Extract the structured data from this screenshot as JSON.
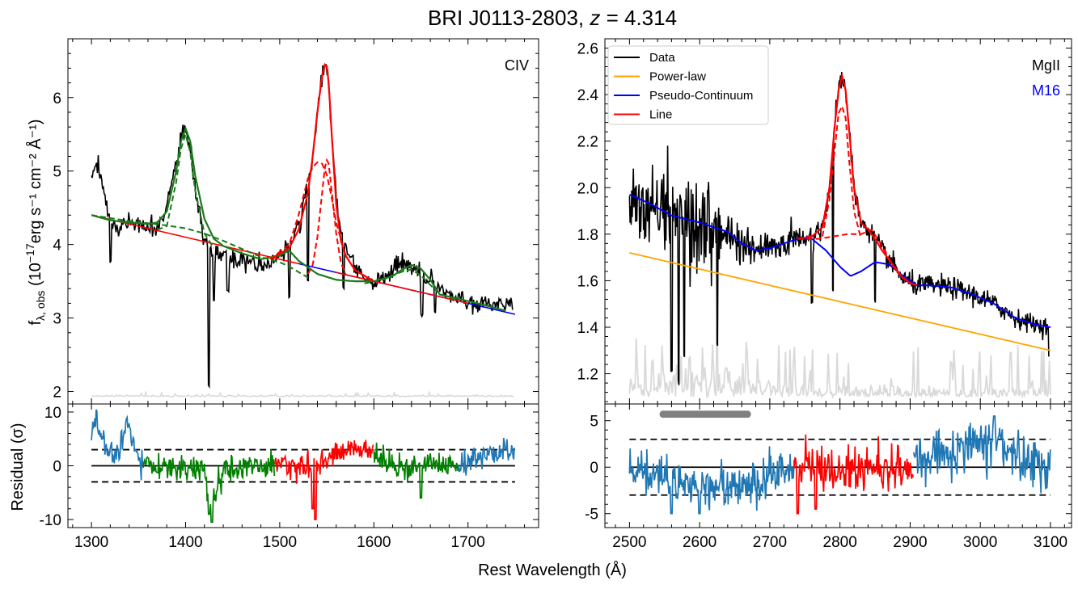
{
  "figure": {
    "title": "BRI J0113-2803, z = 4.314",
    "title_name": "BRI J0113-2803, ",
    "title_z": "z",
    "title_eq": " = 4.314",
    "shared_xlabel": "Rest Wavelength (Å)",
    "ylabel_top": "f",
    "ylabel_sub": "λ, obs",
    "ylabel_rest": " (10",
    "ylabel_sup": "−17",
    "ylabel_tail": "erg s⁻¹ cm⁻² Å⁻¹)",
    "residual_ylabel": "Residual (σ)"
  },
  "colors": {
    "data": "#000000",
    "power_law": "#ffa500",
    "pseudo_continuum": "#0000ff",
    "line": "#ff0000",
    "error": "#d9d9d9",
    "civ_component": "#ff0000",
    "other_component": "#1a7a1a",
    "residual_default": "#1f77b4",
    "residual_line": "#ff0000",
    "residual_other": "#008000",
    "masked": "#808080",
    "m16": "#0000ff"
  },
  "chart_data": [
    {
      "panel": "civ-spectrum",
      "type": "line",
      "annotation": "CIV",
      "xlim": [
        1275,
        1775
      ],
      "ylim": [
        1.83,
        6.8
      ],
      "xticks": [
        1300,
        1400,
        1500,
        1600,
        1700
      ],
      "yticks": [
        2,
        3,
        4,
        5,
        6
      ],
      "continuum": {
        "x": [
          1300,
          1750
        ],
        "y": [
          4.4,
          3.05
        ]
      },
      "data_anchors": {
        "x": [
          1300,
          1305,
          1310,
          1315,
          1320,
          1330,
          1340,
          1350,
          1360,
          1370,
          1380,
          1390,
          1395,
          1400,
          1405,
          1410,
          1420,
          1425,
          1430,
          1440,
          1450,
          1460,
          1470,
          1480,
          1490,
          1500,
          1510,
          1520,
          1530,
          1535,
          1540,
          1545,
          1548,
          1550,
          1552,
          1555,
          1560,
          1565,
          1570,
          1580,
          1590,
          1600,
          1610,
          1620,
          1630,
          1640,
          1650,
          1660,
          1670,
          1680,
          1690,
          1700,
          1710,
          1720,
          1730,
          1740,
          1748
        ],
        "y": [
          4.9,
          5.05,
          4.95,
          4.6,
          4.3,
          4.2,
          4.35,
          4.25,
          4.2,
          4.25,
          4.5,
          5.1,
          5.45,
          5.55,
          5.3,
          4.75,
          4.05,
          3.95,
          3.85,
          3.82,
          3.8,
          3.78,
          3.75,
          3.75,
          3.78,
          3.85,
          4.0,
          4.25,
          4.8,
          5.2,
          5.8,
          6.3,
          6.45,
          6.4,
          6.1,
          5.5,
          4.7,
          4.2,
          3.95,
          3.7,
          3.55,
          3.5,
          3.55,
          3.65,
          3.75,
          3.7,
          3.6,
          3.5,
          3.4,
          3.3,
          3.25,
          3.2,
          3.2,
          3.22,
          3.2,
          3.2,
          3.22
        ]
      },
      "data_dips": [
        [
          1320,
          3.75
        ],
        [
          1425,
          2.05
        ],
        [
          1430,
          3.2
        ],
        [
          1445,
          3.35
        ],
        [
          1510,
          3.25
        ],
        [
          1530,
          3.5
        ],
        [
          1568,
          3.4
        ],
        [
          1651,
          3.0
        ],
        [
          1665,
          3.05
        ]
      ],
      "green_total": {
        "x": [
          1300,
          1320,
          1340,
          1360,
          1370,
          1380,
          1390,
          1395,
          1400,
          1405,
          1410,
          1420,
          1430,
          1440,
          1460,
          1480,
          1500,
          1510,
          1520,
          1540,
          1560,
          1580,
          1600,
          1620,
          1630,
          1640,
          1650,
          1660,
          1670,
          1690,
          1710,
          1740
        ],
        "y": [
          4.4,
          4.33,
          4.3,
          4.28,
          4.3,
          4.45,
          5.0,
          5.4,
          5.58,
          5.4,
          4.95,
          4.35,
          4.08,
          3.98,
          3.88,
          3.8,
          3.85,
          3.92,
          3.78,
          3.6,
          3.52,
          3.5,
          3.5,
          3.57,
          3.66,
          3.72,
          3.67,
          3.52,
          3.32,
          3.26,
          3.2,
          3.1
        ]
      },
      "green_broad": {
        "x": [
          1300,
          1340,
          1380,
          1400,
          1420,
          1440,
          1460,
          1480,
          1500,
          1510,
          1530
        ],
        "y": [
          4.4,
          4.32,
          4.26,
          4.22,
          4.15,
          4.05,
          3.94,
          3.83,
          3.76,
          3.7,
          3.55
        ]
      },
      "green_narrow": {
        "x": [
          1370,
          1380,
          1390,
          1395,
          1400,
          1405,
          1410,
          1420,
          1430
        ],
        "y": [
          4.2,
          4.25,
          4.85,
          5.3,
          5.5,
          5.25,
          4.75,
          4.15,
          3.95
        ]
      },
      "green_1640": {
        "x": [
          1590,
          1610,
          1620,
          1630,
          1640,
          1650,
          1660,
          1670,
          1690
        ],
        "y": [
          3.47,
          3.52,
          3.58,
          3.63,
          3.66,
          3.58,
          3.45,
          3.33,
          3.24
        ]
      },
      "civ_total": {
        "x": [
          1490,
          1510,
          1520,
          1530,
          1535,
          1540,
          1545,
          1548,
          1550,
          1552,
          1555,
          1560,
          1565,
          1570,
          1580,
          1600
        ],
        "y": [
          3.8,
          3.95,
          4.2,
          4.7,
          5.2,
          5.8,
          6.3,
          6.45,
          6.43,
          6.2,
          5.55,
          4.55,
          4.05,
          3.85,
          3.65,
          3.5
        ]
      },
      "civ_broad": {
        "x": [
          1490,
          1510,
          1520,
          1530,
          1535,
          1540,
          1545,
          1550,
          1555,
          1560,
          1570,
          1580,
          1600
        ],
        "y": [
          3.8,
          4.0,
          4.4,
          4.9,
          5.05,
          5.12,
          5.1,
          4.95,
          4.65,
          4.3,
          3.85,
          3.65,
          3.5
        ]
      },
      "civ_narrow": {
        "x": [
          1530,
          1535,
          1540,
          1545,
          1548,
          1550,
          1552,
          1555,
          1560,
          1565,
          1570
        ],
        "y": [
          3.6,
          3.72,
          4.1,
          4.7,
          5.05,
          5.15,
          5.1,
          4.75,
          4.15,
          3.75,
          3.6
        ]
      },
      "error_level": 1.93
    },
    {
      "panel": "mgii-spectrum",
      "type": "line",
      "annotation": "MgII",
      "annotation2": "M16",
      "xlim": [
        2465,
        3130
      ],
      "ylim": [
        1.07,
        2.64
      ],
      "xticks": [
        2500,
        2600,
        2700,
        2800,
        2900,
        3000,
        3100
      ],
      "yticks": [
        1.2,
        1.4,
        1.6,
        1.8,
        2.0,
        2.2,
        2.4,
        2.6
      ],
      "legend": [
        "Data",
        "Power-law",
        "Pseudo-Continuum",
        "Line"
      ],
      "power_law": {
        "x": [
          2500,
          3100
        ],
        "y": [
          1.72,
          1.3
        ]
      },
      "pseudo_continuum": {
        "x": [
          2500,
          2530,
          2560,
          2600,
          2640,
          2660,
          2680,
          2700,
          2720,
          2740,
          2760,
          2780,
          2800,
          2815,
          2830,
          2850,
          2870,
          2890,
          2910,
          2930,
          2960,
          2990,
          3020,
          3050,
          3080,
          3100
        ],
        "y": [
          1.97,
          1.93,
          1.88,
          1.85,
          1.81,
          1.76,
          1.73,
          1.74,
          1.76,
          1.78,
          1.78,
          1.73,
          1.66,
          1.62,
          1.64,
          1.68,
          1.67,
          1.62,
          1.58,
          1.58,
          1.57,
          1.54,
          1.5,
          1.44,
          1.41,
          1.4
        ]
      },
      "line_total": {
        "x": [
          2740,
          2760,
          2775,
          2785,
          2792,
          2798,
          2803,
          2808,
          2813,
          2820,
          2830,
          2840,
          2850,
          2860,
          2870,
          2880,
          2890,
          2900,
          2910
        ],
        "y": [
          1.78,
          1.79,
          1.83,
          2.0,
          2.25,
          2.42,
          2.48,
          2.42,
          2.25,
          2.0,
          1.85,
          1.82,
          1.78,
          1.73,
          1.69,
          1.65,
          1.61,
          1.59,
          1.58
        ]
      },
      "line_comp_narrow": {
        "x": [
          2775,
          2785,
          2792,
          2798,
          2803,
          2808,
          2813,
          2820,
          2830
        ],
        "y": [
          1.79,
          1.95,
          2.15,
          2.32,
          2.35,
          2.3,
          2.12,
          1.9,
          1.78
        ]
      },
      "line_comp_broad": {
        "x": [
          2740,
          2770,
          2790,
          2810,
          2830,
          2845,
          2860,
          2880,
          2900
        ],
        "y": [
          1.78,
          1.78,
          1.79,
          1.8,
          1.8,
          1.82,
          1.75,
          1.64,
          1.59
        ]
      },
      "data_noise_scale": [
        [
          2500,
          0.15
        ],
        [
          2540,
          0.2
        ],
        [
          2580,
          0.25
        ],
        [
          2620,
          0.18
        ],
        [
          2680,
          0.08
        ],
        [
          2800,
          0.05
        ],
        [
          3000,
          0.05
        ],
        [
          3100,
          0.04
        ]
      ],
      "data_dips": [
        [
          2570,
          1.15
        ],
        [
          2560,
          1.2
        ],
        [
          2578,
          1.25
        ],
        [
          2625,
          1.3
        ],
        [
          2760,
          1.5
        ],
        [
          2790,
          1.55
        ],
        [
          2850,
          1.5
        ],
        [
          3098,
          1.27
        ]
      ],
      "error_base": 1.1
    },
    {
      "panel": "civ-residual",
      "type": "line",
      "ylabel": "Residual (σ)",
      "xlim": [
        1275,
        1775
      ],
      "ylim": [
        -11.5,
        11.5
      ],
      "xticks": [
        1300,
        1400,
        1500,
        1600,
        1700
      ],
      "yticks": [
        -10,
        0,
        10
      ],
      "bands": [
        3,
        -3
      ],
      "segments": [
        {
          "range": [
            1300,
            1355
          ],
          "color_key": "residual_default"
        },
        {
          "range": [
            1355,
            1495
          ],
          "color_key": "residual_other"
        },
        {
          "range": [
            1495,
            1600
          ],
          "color_key": "residual_line"
        },
        {
          "range": [
            1600,
            1690
          ],
          "color_key": "residual_other"
        },
        {
          "range": [
            1690,
            1750
          ],
          "color_key": "residual_default"
        }
      ],
      "anchors": {
        "x": [
          1300,
          1305,
          1310,
          1320,
          1330,
          1338,
          1345,
          1355,
          1380,
          1420,
          1425,
          1440,
          1480,
          1500,
          1540,
          1560,
          1580,
          1590,
          1600,
          1620,
          1640,
          1660,
          1690,
          1720,
          1750
        ],
        "y": [
          6,
          9,
          5,
          2,
          3,
          8,
          3,
          0,
          0,
          -1,
          -8,
          -1,
          0,
          0,
          0,
          2,
          4,
          3,
          2,
          0,
          0,
          1,
          0,
          2,
          3
        ]
      },
      "spikes": [
        [
          1425,
          -9
        ],
        [
          1428,
          -10.5
        ],
        [
          1538,
          -10
        ],
        [
          1535,
          -8
        ],
        [
          1650,
          -6
        ]
      ]
    },
    {
      "panel": "mgii-residual",
      "type": "line",
      "xlim": [
        2465,
        3130
      ],
      "ylim": [
        -6.5,
        6.8
      ],
      "xticks": [
        2500,
        2600,
        2700,
        2800,
        2900,
        3000,
        3100
      ],
      "yticks": [
        -5,
        0,
        5
      ],
      "bands": [
        3,
        -3
      ],
      "masked_points": {
        "x_range": [
          2548,
          2668
        ],
        "y": 5.7
      },
      "segments": [
        {
          "range": [
            2500,
            2735
          ],
          "color_key": "residual_default"
        },
        {
          "range": [
            2735,
            2905
          ],
          "color_key": "residual_line"
        },
        {
          "range": [
            2905,
            3100
          ],
          "color_key": "residual_default"
        }
      ],
      "anchors": {
        "x": [
          2500,
          2520,
          2540,
          2560,
          2580,
          2600,
          2640,
          2680,
          2700,
          2735,
          2760,
          2800,
          2850,
          2905,
          2940,
          2980,
          3000,
          3020,
          3040,
          3060,
          3100
        ],
        "y": [
          0,
          -0.5,
          -1,
          -1.5,
          -2,
          -2,
          -2,
          -1.5,
          -0.5,
          0,
          0,
          0,
          0,
          0,
          1.5,
          2,
          2.5,
          3,
          2,
          1,
          0
        ]
      },
      "spikes": [
        [
          2560,
          -5
        ],
        [
          2600,
          -5
        ],
        [
          2740,
          -5
        ],
        [
          2765,
          -4.5
        ],
        [
          3020,
          5.5
        ]
      ]
    }
  ]
}
